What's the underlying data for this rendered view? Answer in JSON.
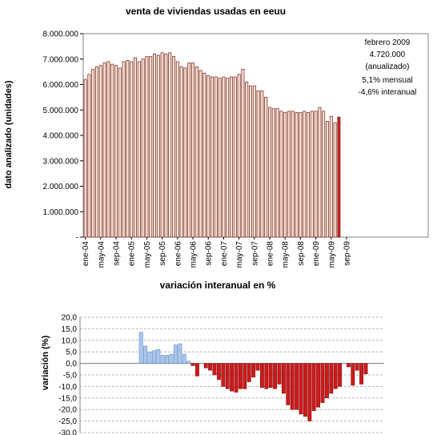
{
  "chart_data": [
    {
      "type": "bar",
      "title": "venta de viviendas usadas en eeuu",
      "ylabel": "dato analizado (unidades)",
      "ylim": [
        0,
        8000000
      ],
      "yticks": [
        "-",
        "1.000.000",
        "2.000.000",
        "3.000.000",
        "4.000.000",
        "5.000.000",
        "6.000.000",
        "7.000.000",
        "8.000.000"
      ],
      "xticks": [
        "ene-04",
        "may-04",
        "sep-04",
        "ene-05",
        "may-05",
        "sep-05",
        "ene-06",
        "may-06",
        "sep-06",
        "ene-07",
        "may-07",
        "sep-07",
        "ene-08",
        "may-08",
        "sep-08",
        "ene-09",
        "may-09",
        "sep-09"
      ],
      "grid": false,
      "bar_fill": "#fbe3d4",
      "bar_stroke": "#6b1a10",
      "highlight_fill": "#cc2222",
      "values": [
        6200000,
        6400000,
        6600000,
        6700000,
        6750000,
        6850000,
        6900000,
        6800000,
        6750000,
        6650000,
        6900000,
        6950000,
        6900000,
        7050000,
        6900000,
        7000000,
        7100000,
        7100000,
        7200000,
        7150000,
        7250000,
        7200000,
        7250000,
        7100000,
        6900000,
        6700000,
        6650000,
        6850000,
        6850000,
        6700000,
        6550000,
        6450000,
        6350000,
        6300000,
        6300000,
        6250000,
        6300000,
        6250000,
        6300000,
        6300000,
        6400000,
        6600000,
        6100000,
        5950000,
        5950000,
        5750000,
        5750000,
        5500000,
        5100000,
        5050000,
        5050000,
        4950000,
        4900000,
        4950000,
        4950000,
        4900000,
        4900000,
        4950000,
        4900000,
        4950000,
        4950000,
        5100000,
        4950000,
        4550000,
        4750000,
        4500000,
        4720000
      ],
      "annotations": [
        {
          "text": "febrero 2009",
          "color": "#000000"
        },
        {
          "text": "4.720.000",
          "color": "#000000"
        },
        {
          "text": "(anualizado)",
          "color": "#000000"
        },
        {
          "text": "5,1% mensual",
          "color": "#1a1aa6"
        },
        {
          "text": "-4,6% interanual",
          "color": "#cc0000"
        }
      ]
    },
    {
      "type": "bar",
      "title": "variación interanual en %",
      "ylabel": "variación (%)",
      "ylim": [
        -30,
        20
      ],
      "yticks": [
        "-30,0",
        "-25,0",
        "-20,0",
        "-15,0",
        "-10,0",
        "-5,0",
        "0,0",
        "5,0",
        "10,0",
        "15,0",
        "20,0"
      ],
      "grid": true,
      "positive_color": "#a8c8f0",
      "negative_color": "#cc1a1a",
      "values": [
        13.5,
        7.5,
        5,
        5.5,
        6,
        3.5,
        3.5,
        4,
        8,
        8.5,
        4,
        1,
        -1,
        -5.5,
        0,
        -2,
        -3,
        -5,
        -7,
        -10,
        -11,
        -12,
        -12.5,
        -11,
        -11,
        -8,
        -6,
        -3,
        -10.5,
        -11,
        -10.5,
        -11,
        -9,
        -13,
        -18,
        -20,
        -20,
        -22,
        -23,
        -25,
        -20.5,
        -19,
        -17,
        -15,
        -13,
        -11,
        -10,
        0,
        -1.5,
        -9.5,
        -3,
        -9,
        -4.6
      ]
    }
  ]
}
